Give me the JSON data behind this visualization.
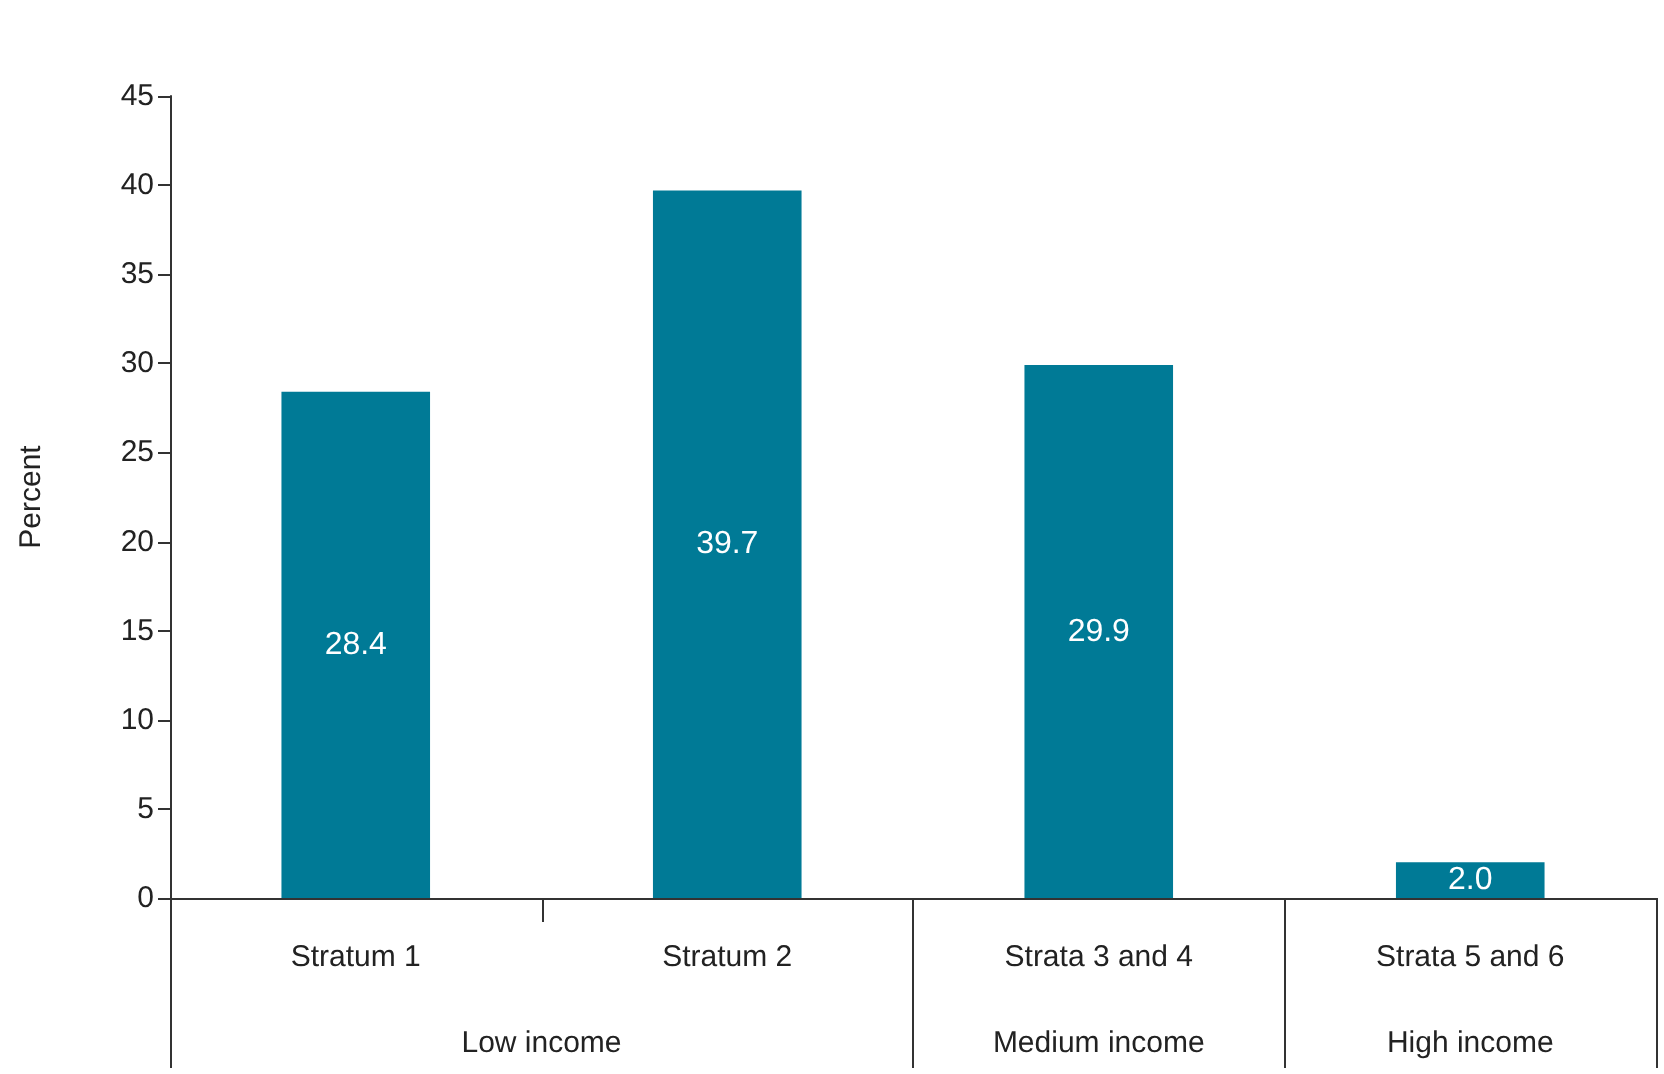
{
  "chart_data": {
    "type": "bar",
    "categories": [
      "Stratum 1",
      "Stratum 2",
      "Strata 3 and 4",
      "Strata 5 and 6"
    ],
    "values": [
      28.4,
      39.7,
      29.9,
      2.0
    ],
    "color": "#007a96",
    "value_labels": [
      "28.4",
      "39.7",
      "29.9",
      "2.0"
    ],
    "ylabel": "Percent",
    "ylim": [
      0,
      45
    ],
    "yticks": [
      0,
      5,
      10,
      15,
      20,
      25,
      30,
      35,
      40,
      45
    ],
    "annotations": [
      "Low income",
      "Medium income",
      "High income"
    ],
    "grid": false
  }
}
